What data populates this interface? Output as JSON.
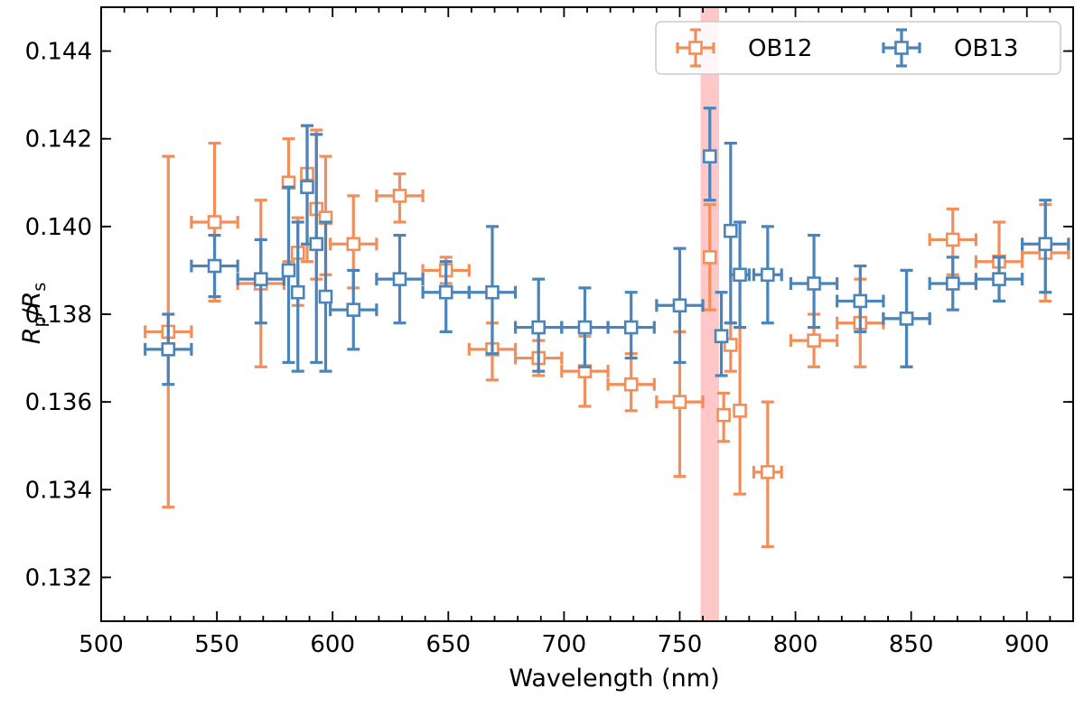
{
  "chart_data": {
    "type": "scatter",
    "title": "",
    "xlabel": "Wavelength (nm)",
    "ylabel": {
      "main1": "R",
      "sub1": "p",
      "slash": "/",
      "main2": "R",
      "sub2": "s"
    },
    "xlim": [
      500,
      920
    ],
    "ylim": [
      0.131,
      0.145
    ],
    "xticks": [
      500,
      550,
      600,
      650,
      700,
      750,
      800,
      850,
      900
    ],
    "yticks": [
      0.132,
      0.134,
      0.136,
      0.138,
      0.14,
      0.142,
      0.144
    ],
    "ytick_labels": [
      "0.132",
      "0.134",
      "0.136",
      "0.138",
      "0.140",
      "0.142",
      "0.144"
    ],
    "highlight_band": {
      "x0": 759,
      "x1": 767,
      "color": "#ff9999"
    },
    "legend_position": "top-right",
    "series": [
      {
        "name": "OB12",
        "color": "#f28e5a",
        "points": [
          {
            "x": 529,
            "xerr": 10,
            "y": 0.1376,
            "ylo": 0.1336,
            "yhi": 0.1416
          },
          {
            "x": 549,
            "xerr": 10,
            "y": 0.1401,
            "ylo": 0.1383,
            "yhi": 0.1419
          },
          {
            "x": 569,
            "xerr": 10,
            "y": 0.1387,
            "ylo": 0.1368,
            "yhi": 0.1406
          },
          {
            "x": 581,
            "xerr": 2,
            "y": 0.141,
            "ylo": 0.1392,
            "yhi": 0.142
          },
          {
            "x": 585,
            "xerr": 2,
            "y": 0.1394,
            "ylo": 0.1382,
            "yhi": 0.1402
          },
          {
            "x": 589,
            "xerr": 2,
            "y": 0.1412,
            "ylo": 0.1392,
            "yhi": 0.1423
          },
          {
            "x": 593,
            "xerr": 2,
            "y": 0.1404,
            "ylo": 0.1388,
            "yhi": 0.1422
          },
          {
            "x": 597,
            "xerr": 2,
            "y": 0.1402,
            "ylo": 0.1389,
            "yhi": 0.1416
          },
          {
            "x": 609,
            "xerr": 10,
            "y": 0.1396,
            "ylo": 0.1386,
            "yhi": 0.1407
          },
          {
            "x": 629,
            "xerr": 10,
            "y": 0.1407,
            "ylo": 0.1401,
            "yhi": 0.1412
          },
          {
            "x": 649,
            "xerr": 10,
            "y": 0.139,
            "ylo": 0.1387,
            "yhi": 0.1393
          },
          {
            "x": 669,
            "xerr": 10,
            "y": 0.1372,
            "ylo": 0.1365,
            "yhi": 0.1378
          },
          {
            "x": 689,
            "xerr": 10,
            "y": 0.137,
            "ylo": 0.1366,
            "yhi": 0.1374
          },
          {
            "x": 709,
            "xerr": 10,
            "y": 0.1367,
            "ylo": 0.1359,
            "yhi": 0.1375
          },
          {
            "x": 729,
            "xerr": 10,
            "y": 0.1364,
            "ylo": 0.1358,
            "yhi": 0.1371
          },
          {
            "x": 750,
            "xerr": 10,
            "y": 0.136,
            "ylo": 0.1343,
            "yhi": 0.1376
          },
          {
            "x": 763,
            "xerr": 2,
            "y": 0.1393,
            "ylo": 0.1381,
            "yhi": 0.1405
          },
          {
            "x": 769,
            "xerr": 2,
            "y": 0.1357,
            "ylo": 0.1351,
            "yhi": 0.1362
          },
          {
            "x": 772,
            "xerr": 2,
            "y": 0.1373,
            "ylo": 0.1367,
            "yhi": 0.1378
          },
          {
            "x": 776,
            "xerr": 2,
            "y": 0.1358,
            "ylo": 0.1339,
            "yhi": 0.1377
          },
          {
            "x": 788,
            "xerr": 6,
            "y": 0.1344,
            "ylo": 0.1327,
            "yhi": 0.136
          },
          {
            "x": 808,
            "xerr": 10,
            "y": 0.1374,
            "ylo": 0.1368,
            "yhi": 0.138
          },
          {
            "x": 828,
            "xerr": 10,
            "y": 0.1378,
            "ylo": 0.1368,
            "yhi": 0.1388
          },
          {
            "x": 848,
            "xerr": 10,
            "y": 0.1379,
            "ylo": 0.1368,
            "yhi": 0.139
          },
          {
            "x": 868,
            "xerr": 10,
            "y": 0.1397,
            "ylo": 0.1389,
            "yhi": 0.1404
          },
          {
            "x": 888,
            "xerr": 10,
            "y": 0.1392,
            "ylo": 0.1383,
            "yhi": 0.1401
          },
          {
            "x": 908,
            "xerr": 10,
            "y": 0.1394,
            "ylo": 0.1383,
            "yhi": 0.1405
          }
        ]
      },
      {
        "name": "OB13",
        "color": "#4a84b8",
        "points": [
          {
            "x": 529,
            "xerr": 10,
            "y": 0.1372,
            "ylo": 0.1364,
            "yhi": 0.138
          },
          {
            "x": 549,
            "xerr": 10,
            "y": 0.1391,
            "ylo": 0.1384,
            "yhi": 0.1398
          },
          {
            "x": 569,
            "xerr": 10,
            "y": 0.1388,
            "ylo": 0.1378,
            "yhi": 0.1397
          },
          {
            "x": 581,
            "xerr": 2,
            "y": 0.139,
            "ylo": 0.1369,
            "yhi": 0.1409
          },
          {
            "x": 585,
            "xerr": 2,
            "y": 0.1385,
            "ylo": 0.1367,
            "yhi": 0.1401
          },
          {
            "x": 589,
            "xerr": 2,
            "y": 0.1409,
            "ylo": 0.1396,
            "yhi": 0.1423
          },
          {
            "x": 593,
            "xerr": 2,
            "y": 0.1396,
            "ylo": 0.1369,
            "yhi": 0.1421
          },
          {
            "x": 597,
            "xerr": 2,
            "y": 0.1384,
            "ylo": 0.1367,
            "yhi": 0.1401
          },
          {
            "x": 609,
            "xerr": 10,
            "y": 0.1381,
            "ylo": 0.1372,
            "yhi": 0.139
          },
          {
            "x": 629,
            "xerr": 10,
            "y": 0.1388,
            "ylo": 0.1378,
            "yhi": 0.1398
          },
          {
            "x": 649,
            "xerr": 10,
            "y": 0.1385,
            "ylo": 0.1376,
            "yhi": 0.1392
          },
          {
            "x": 669,
            "xerr": 10,
            "y": 0.1385,
            "ylo": 0.1371,
            "yhi": 0.14
          },
          {
            "x": 689,
            "xerr": 10,
            "y": 0.1377,
            "ylo": 0.1367,
            "yhi": 0.1388
          },
          {
            "x": 709,
            "xerr": 10,
            "y": 0.1377,
            "ylo": 0.1368,
            "yhi": 0.1386
          },
          {
            "x": 729,
            "xerr": 10,
            "y": 0.1377,
            "ylo": 0.137,
            "yhi": 0.1385
          },
          {
            "x": 750,
            "xerr": 10,
            "y": 0.1382,
            "ylo": 0.1369,
            "yhi": 0.1395
          },
          {
            "x": 763,
            "xerr": 2,
            "y": 0.1416,
            "ylo": 0.1406,
            "yhi": 0.1427
          },
          {
            "x": 768,
            "xerr": 2,
            "y": 0.1375,
            "ylo": 0.1366,
            "yhi": 0.1385
          },
          {
            "x": 772,
            "xerr": 2,
            "y": 0.1399,
            "ylo": 0.1378,
            "yhi": 0.1419
          },
          {
            "x": 776,
            "xerr": 4,
            "y": 0.1389,
            "ylo": 0.1377,
            "yhi": 0.1401
          },
          {
            "x": 788,
            "xerr": 6,
            "y": 0.1389,
            "ylo": 0.1378,
            "yhi": 0.14
          },
          {
            "x": 808,
            "xerr": 10,
            "y": 0.1387,
            "ylo": 0.1377,
            "yhi": 0.1398
          },
          {
            "x": 828,
            "xerr": 10,
            "y": 0.1383,
            "ylo": 0.1376,
            "yhi": 0.1391
          },
          {
            "x": 848,
            "xerr": 10,
            "y": 0.1379,
            "ylo": 0.1368,
            "yhi": 0.139
          },
          {
            "x": 868,
            "xerr": 10,
            "y": 0.1387,
            "ylo": 0.1381,
            "yhi": 0.1393
          },
          {
            "x": 888,
            "xerr": 10,
            "y": 0.1388,
            "ylo": 0.1383,
            "yhi": 0.1393
          },
          {
            "x": 908,
            "xerr": 10,
            "y": 0.1396,
            "ylo": 0.1385,
            "yhi": 0.1406
          }
        ]
      }
    ]
  }
}
